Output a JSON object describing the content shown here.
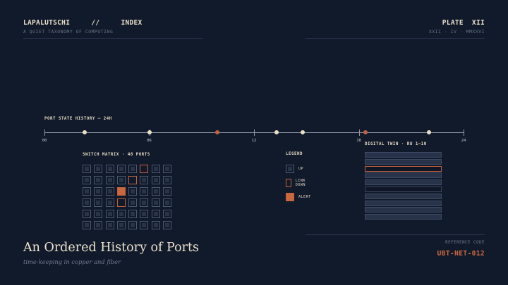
{
  "header": {
    "brand": "LAPALUTSCHI",
    "separator": "//",
    "section": "INDEX",
    "subtitle": "A QUIET TAXONOMY OF COMPUTING",
    "plate": "PLATE  XII",
    "date": "XXII · IV · MMXXVI"
  },
  "timeline": {
    "label": "PORT STATE HISTORY — 24H",
    "tick_labels": [
      "00",
      "06",
      "12",
      "18",
      "24"
    ],
    "range_hours": [
      0,
      24
    ],
    "events": [
      {
        "hour": 2.3,
        "state": "up"
      },
      {
        "hour": 6.0,
        "state": "up"
      },
      {
        "hour": 9.9,
        "state": "alert"
      },
      {
        "hour": 13.3,
        "state": "up"
      },
      {
        "hour": 14.8,
        "state": "up"
      },
      {
        "hour": 18.4,
        "state": "alert"
      },
      {
        "hour": 22.0,
        "state": "up"
      }
    ]
  },
  "matrix": {
    "label": "SWITCH MATRIX · 48 PORTS",
    "columns": 8,
    "ports": [
      "up",
      "up",
      "up",
      "up",
      "up",
      "down",
      "up",
      "up",
      "up",
      "up",
      "up",
      "up",
      "down",
      "up",
      "up",
      "up",
      "up",
      "up",
      "up",
      "alert",
      "up",
      "up",
      "up",
      "up",
      "up",
      "up",
      "up",
      "down",
      "up",
      "up",
      "up",
      "up",
      "up",
      "up",
      "up",
      "up",
      "up",
      "up",
      "up",
      "up",
      "up",
      "up",
      "up",
      "up",
      "up",
      "up",
      "up",
      "up"
    ]
  },
  "legend": {
    "label": "LEGEND",
    "items": [
      {
        "state": "up",
        "text": "UP"
      },
      {
        "state": "down",
        "text": "LINK DOWN"
      },
      {
        "state": "alert",
        "text": "ALERT"
      }
    ]
  },
  "twin": {
    "label": "DIGITAL TWIN · RU 1–10",
    "units": [
      "filled",
      "filled",
      "fault",
      "filled",
      "filled",
      "empty",
      "filled",
      "filled",
      "filled",
      "filled"
    ]
  },
  "title": {
    "main": "An Ordered History of Ports",
    "sub": "time-keeping in copper and fiber"
  },
  "reference": {
    "label": "REFERENCE CODE",
    "code": "UBT-NET-012"
  },
  "colors": {
    "background": "#111a2a",
    "accent": "#c2613d",
    "ink": "#ece2cd"
  }
}
